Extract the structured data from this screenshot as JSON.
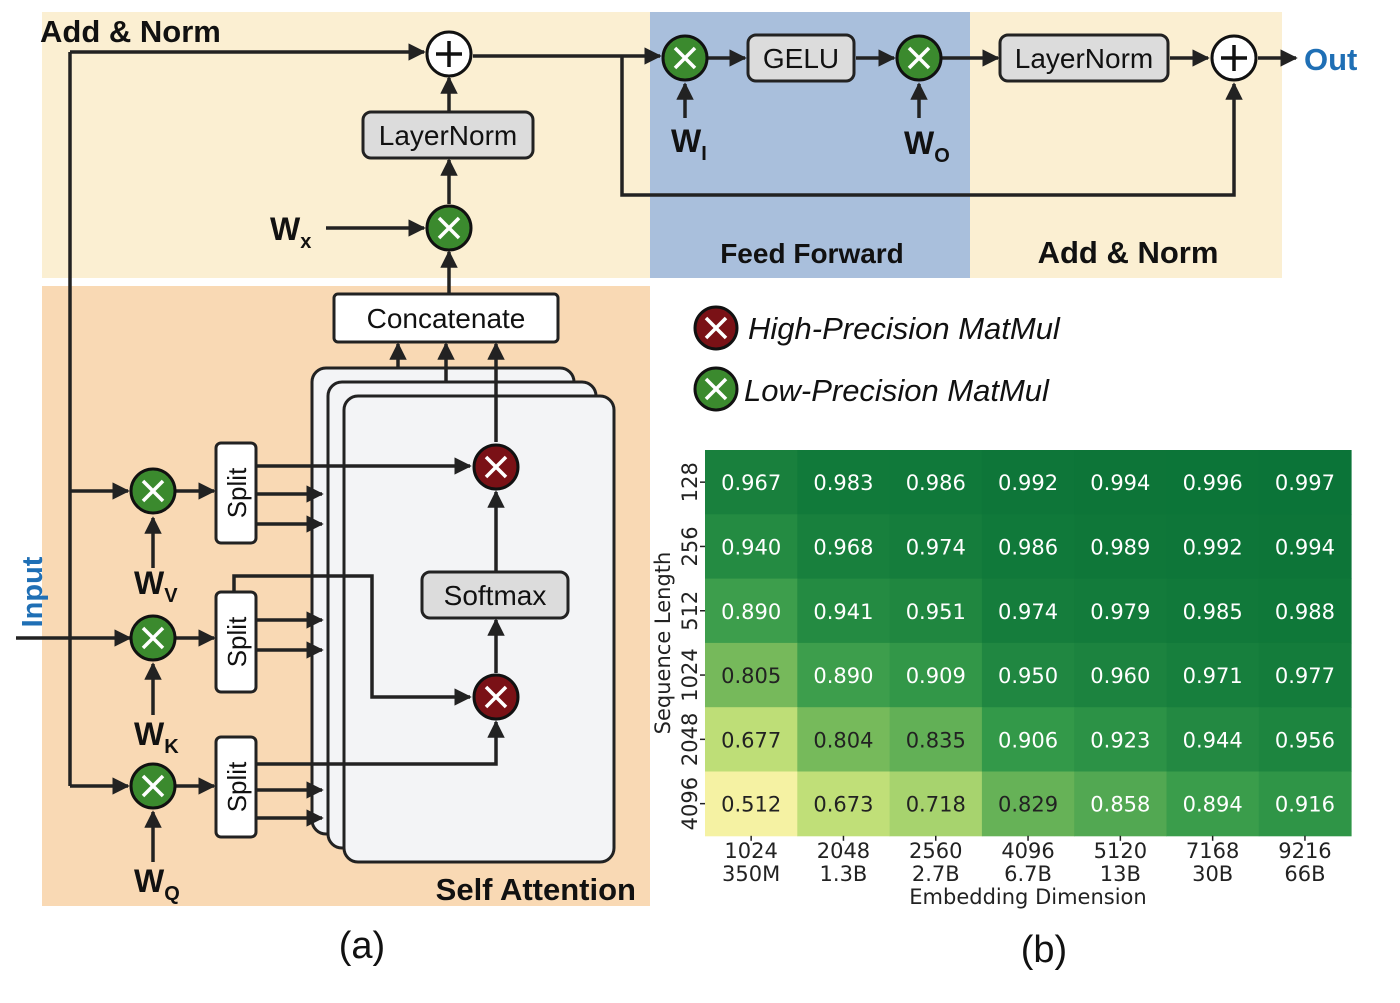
{
  "panel_a": {
    "label": "(a)",
    "top_region_label": "Add & Norm",
    "self_attention_label": "Self Attention",
    "feed_forward_label": "Feed Forward",
    "add_norm_right_label": "Add & Norm",
    "input_label": "Input",
    "output_label": "Out",
    "layernorm_left": "LayerNorm",
    "layernorm_right": "LayerNorm",
    "gelu": "GELU",
    "concatenate": "Concatenate",
    "softmax": "Softmax",
    "split": "Split",
    "weights": {
      "wx": {
        "main": "W",
        "sub": "x"
      },
      "wv": {
        "main": "W",
        "sub": "V"
      },
      "wk": {
        "main": "W",
        "sub": "K"
      },
      "wq": {
        "main": "W",
        "sub": "Q"
      },
      "wi": {
        "main": "W",
        "sub": "I"
      },
      "wo": {
        "main": "W",
        "sub": "O"
      }
    }
  },
  "legend": {
    "high": "High-Precision MatMul",
    "low": "Low-Precision MatMul"
  },
  "colors": {
    "add_norm_bg": "#fbefd2",
    "self_attention_bg": "#f9d9b4",
    "feed_forward_bg": "#a9bfdc",
    "high_precision": "#7a1116",
    "low_precision": "#3b8a2e",
    "accent_blue": "#1f6fb5"
  },
  "panel_b": {
    "label": "(b)"
  },
  "chart_data": {
    "type": "heatmap",
    "xlabel": "Embedding Dimension",
    "ylabel": "Sequence Length",
    "x_categories": [
      {
        "top": "1024",
        "bottom": "350M"
      },
      {
        "top": "2048",
        "bottom": "1.3B"
      },
      {
        "top": "2560",
        "bottom": "2.7B"
      },
      {
        "top": "4096",
        "bottom": "6.7B"
      },
      {
        "top": "5120",
        "bottom": "13B"
      },
      {
        "top": "7168",
        "bottom": "30B"
      },
      {
        "top": "9216",
        "bottom": "66B"
      }
    ],
    "y_categories": [
      "128",
      "256",
      "512",
      "1024",
      "2048",
      "4096"
    ],
    "values": [
      [
        "0.967",
        "0.983",
        "0.986",
        "0.992",
        "0.994",
        "0.996",
        "0.997"
      ],
      [
        "0.940",
        "0.968",
        "0.974",
        "0.986",
        "0.989",
        "0.992",
        "0.994"
      ],
      [
        "0.890",
        "0.941",
        "0.951",
        "0.974",
        "0.979",
        "0.985",
        "0.988"
      ],
      [
        "0.805",
        "0.890",
        "0.909",
        "0.950",
        "0.960",
        "0.971",
        "0.977"
      ],
      [
        "0.677",
        "0.804",
        "0.835",
        "0.906",
        "0.923",
        "0.944",
        "0.956"
      ],
      [
        "0.512",
        "0.673",
        "0.718",
        "0.829",
        "0.858",
        "0.894",
        "0.916"
      ]
    ],
    "color_range": [
      0.5,
      1.0
    ]
  }
}
